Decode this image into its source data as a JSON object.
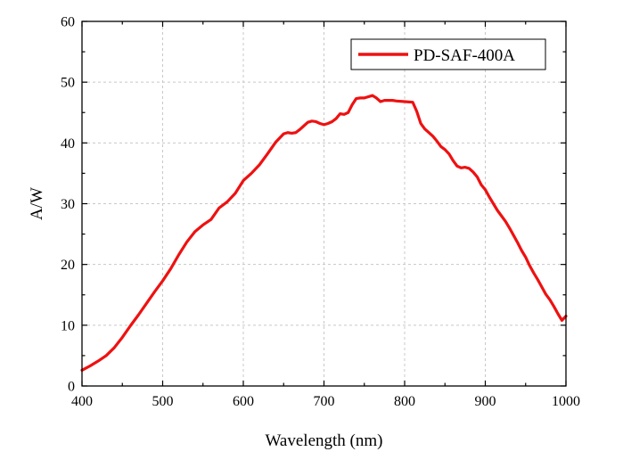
{
  "chart_data": {
    "type": "line",
    "title": "",
    "xlabel": "Wavelength (nm)",
    "ylabel": "A/W",
    "xlim": [
      400,
      1000
    ],
    "ylim": [
      0,
      60
    ],
    "xticks": [
      400,
      500,
      600,
      700,
      800,
      900,
      1000
    ],
    "yticks": [
      0,
      10,
      20,
      30,
      40,
      50,
      60
    ],
    "grid": true,
    "legend_position": "top-right",
    "series": [
      {
        "name": "PD-SAF-400A",
        "color": "#ee1111",
        "x": [
          400,
          410,
          420,
          430,
          440,
          450,
          460,
          470,
          480,
          490,
          500,
          510,
          520,
          530,
          540,
          550,
          560,
          570,
          575,
          580,
          590,
          600,
          610,
          620,
          630,
          640,
          650,
          655,
          660,
          665,
          670,
          675,
          680,
          685,
          690,
          695,
          700,
          705,
          710,
          715,
          720,
          725,
          730,
          735,
          740,
          745,
          750,
          760,
          765,
          770,
          775,
          780,
          785,
          790,
          800,
          810,
          815,
          820,
          825,
          830,
          835,
          840,
          845,
          850,
          855,
          860,
          865,
          870,
          875,
          880,
          885,
          890,
          895,
          900,
          905,
          910,
          915,
          920,
          925,
          930,
          935,
          940,
          945,
          950,
          955,
          960,
          965,
          970,
          975,
          980,
          985,
          990,
          995,
          1000
        ],
        "y": [
          2.6,
          3.3,
          4.1,
          5.0,
          6.3,
          8.0,
          9.9,
          11.7,
          13.6,
          15.5,
          17.3,
          19.3,
          21.6,
          23.7,
          25.4,
          26.5,
          27.4,
          29.3,
          29.8,
          30.3,
          31.7,
          33.8,
          35.0,
          36.4,
          38.2,
          40.1,
          41.5,
          41.7,
          41.6,
          41.7,
          42.2,
          42.8,
          43.4,
          43.6,
          43.5,
          43.2,
          43.0,
          43.2,
          43.5,
          44.0,
          44.8,
          44.7,
          45.0,
          46.3,
          47.3,
          47.4,
          47.4,
          47.8,
          47.4,
          46.8,
          47.0,
          47.0,
          47.0,
          46.9,
          46.8,
          46.7,
          45.2,
          43.2,
          42.3,
          41.7,
          41.1,
          40.3,
          39.4,
          38.9,
          38.2,
          37.1,
          36.2,
          35.9,
          36.0,
          35.8,
          35.2,
          34.4,
          33.1,
          32.3,
          31.1,
          30.0,
          28.9,
          28.0,
          27.1,
          26.0,
          24.8,
          23.6,
          22.3,
          21.2,
          19.8,
          18.6,
          17.5,
          16.3,
          15.1,
          14.2,
          13.1,
          11.9,
          10.8,
          11.5
        ]
      }
    ]
  }
}
